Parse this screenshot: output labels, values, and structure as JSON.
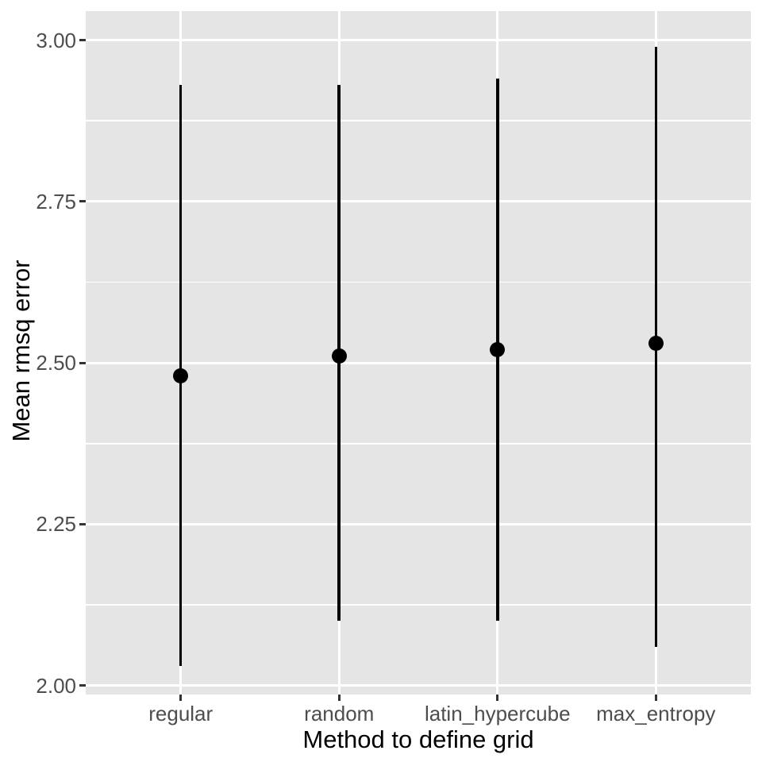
{
  "chart_data": {
    "type": "pointrange",
    "title": "",
    "xlabel": "Method to define grid",
    "ylabel": "Mean rmsq error",
    "categories": [
      "regular",
      "random",
      "latin_hypercube",
      "max_entropy"
    ],
    "series": [
      {
        "name": "mean",
        "values": [
          2.48,
          2.51,
          2.52,
          2.53
        ]
      },
      {
        "name": "lower",
        "values": [
          2.03,
          2.1,
          2.1,
          2.06
        ]
      },
      {
        "name": "upper",
        "values": [
          2.93,
          2.93,
          2.94,
          2.99
        ]
      }
    ],
    "y_axis": {
      "ticks": [
        2.0,
        2.25,
        2.5,
        2.75,
        3.0
      ],
      "tick_labels": [
        "2.00",
        "2.25",
        "2.50",
        "2.75",
        "3.00"
      ],
      "minor_ticks": [
        2.125,
        2.375,
        2.625,
        2.875
      ],
      "range": [
        1.986,
        3.045
      ]
    },
    "grid": "horizontal major+minor, vertical major at categories",
    "legend": "none",
    "colors": {
      "plot_background": "#FFFFFF",
      "panel_background": "#E5E5E5",
      "gridline": "#FFFFFF",
      "geom": "#000000",
      "axis_text": "#4D4D4D",
      "axis_title": "#000000",
      "tick_mark": "#333333"
    }
  }
}
